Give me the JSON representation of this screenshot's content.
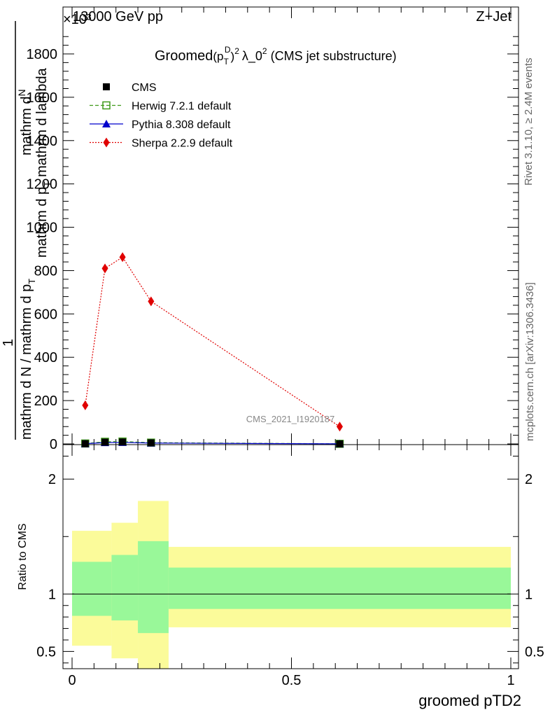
{
  "header": {
    "left": "13000 GeV pp",
    "right": "Z+Jet"
  },
  "side_text": {
    "rivet": "Rivet 3.1.10, ≥ 2.4M events",
    "mcplots": "mcplots.cern.ch [arXiv:1306.3436]"
  },
  "watermark": "CMS_2021_I1920187",
  "y_exponent": "×10³",
  "title_parts": {
    "groomed": "Groomed",
    "p": "(p",
    "sub": "T",
    "sup": "D",
    "close": ")",
    "pow": "2",
    "lambda": "λ_0",
    "lpow": "2",
    "tail": "(CMS jet substructure)"
  },
  "ylabel_parts": {
    "one": "1",
    "denominator": "mathrm d N / mathrm d p",
    "sub": "T",
    "num_line1": "mathrm d",
    "num_line1b": "N",
    "num_line2": "mathrm d p",
    "num_line2_sub": "T",
    "num_line2_tail": "mathrm d lambda"
  },
  "legend": [
    {
      "label": "CMS",
      "marker": "square",
      "color": "#000000"
    },
    {
      "label": "Herwig 7.2.1 default",
      "marker": "open-square",
      "color": "#3f9a1a"
    },
    {
      "label": "Pythia 8.308 default",
      "marker": "triangle",
      "color": "#0000cc"
    },
    {
      "label": "Sherpa 2.2.9 default",
      "marker": "diamond",
      "color": "#e00000"
    }
  ],
  "chart_data": [
    {
      "type": "line",
      "x": [
        0.03,
        0.075,
        0.115,
        0.18,
        0.61
      ],
      "series": [
        {
          "name": "CMS",
          "values": [
            1,
            8,
            9,
            5,
            0.3
          ],
          "color": "#000000"
        },
        {
          "name": "Herwig 7.2.1 default",
          "values": [
            2,
            10,
            11,
            6,
            0.5
          ],
          "color": "#3f9a1a"
        },
        {
          "name": "Pythia 8.308 default",
          "values": [
            1,
            6,
            7,
            4,
            0.3
          ],
          "color": "#0000cc"
        },
        {
          "name": "Sherpa 2.2.9 default",
          "values": [
            178,
            810,
            862,
            658,
            80
          ],
          "color": "#e00000"
        }
      ],
      "xlim": [
        0,
        1
      ],
      "ylim": [
        0,
        1950
      ],
      "ytick_labels": [
        "0",
        "200",
        "400",
        "600",
        "800",
        "1000",
        "1200",
        "1400",
        "1600",
        "1800"
      ],
      "yticks": [
        0,
        200,
        400,
        600,
        800,
        1000,
        1200,
        1400,
        1600,
        1800
      ]
    },
    {
      "type": "area",
      "ylabel": "Ratio to CMS",
      "xlabel": "groomed pTD2",
      "xlim": [
        0,
        1
      ],
      "ylim": [
        0.35,
        2.3
      ],
      "yticks": [
        0.5,
        1,
        2
      ],
      "ytick_labels": [
        "0.5",
        "1",
        "2"
      ],
      "xticks": [
        0,
        0.5,
        1
      ],
      "xtick_labels": [
        "0",
        "0.5",
        "1"
      ],
      "bins": [
        {
          "lo": 0.0,
          "hi": 0.09,
          "inner": [
            0.81,
            1.28
          ],
          "outer": [
            0.55,
            1.55
          ]
        },
        {
          "lo": 0.09,
          "hi": 0.09,
          "inner": [
            0.82,
            1.27
          ],
          "outer": [
            0.55,
            1.53
          ]
        },
        {
          "lo": 0.09,
          "hi": 0.15,
          "inner": [
            0.77,
            1.34
          ],
          "outer": [
            0.44,
            1.62
          ]
        },
        {
          "lo": 0.15,
          "hi": 0.22,
          "inner": [
            0.66,
            1.46
          ],
          "outer": [
            0.33,
            1.81
          ]
        },
        {
          "lo": 0.22,
          "hi": 1.0,
          "inner": [
            0.87,
            1.23
          ],
          "outer": [
            0.71,
            1.41
          ]
        }
      ],
      "colors": {
        "inner": "#99f899",
        "outer": "#fbfb9a"
      }
    }
  ]
}
